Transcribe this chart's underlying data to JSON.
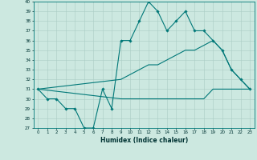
{
  "title": "",
  "xlabel": "Humidex (Indice chaleur)",
  "background_color": "#cce8e0",
  "grid_color": "#aaccc4",
  "line_color": "#007878",
  "xlim": [
    -0.5,
    23.5
  ],
  "ylim": [
    27,
    40
  ],
  "xticks": [
    0,
    1,
    2,
    3,
    4,
    5,
    6,
    7,
    8,
    9,
    10,
    11,
    12,
    13,
    14,
    15,
    16,
    17,
    18,
    19,
    20,
    21,
    22,
    23
  ],
  "yticks": [
    27,
    28,
    29,
    30,
    31,
    32,
    33,
    34,
    35,
    36,
    37,
    38,
    39,
    40
  ],
  "line1_x": [
    0,
    1,
    2,
    3,
    4,
    5,
    6,
    7,
    8,
    9,
    10,
    11,
    12,
    13,
    14,
    15,
    16,
    17,
    18,
    19,
    20,
    21,
    22,
    23
  ],
  "line1_y": [
    31,
    30,
    30,
    29,
    29,
    27,
    27,
    31,
    29,
    36,
    36,
    38,
    40,
    39,
    37,
    38,
    39,
    37,
    37,
    36,
    35,
    33,
    32,
    31
  ],
  "line2_x": [
    0,
    9,
    10,
    11,
    12,
    13,
    14,
    15,
    16,
    17,
    18,
    19,
    20,
    21,
    22,
    23
  ],
  "line2_y": [
    31,
    32,
    32.5,
    33,
    33.5,
    33.5,
    34,
    34.5,
    35,
    35,
    35.5,
    36,
    35,
    33,
    32,
    31
  ],
  "line3_x": [
    0,
    9,
    10,
    11,
    12,
    13,
    14,
    15,
    16,
    17,
    18,
    19,
    20,
    21,
    22,
    23
  ],
  "line3_y": [
    31,
    30,
    30,
    30,
    30,
    30,
    30,
    30,
    30,
    30,
    30,
    31,
    31,
    31,
    31,
    31
  ]
}
